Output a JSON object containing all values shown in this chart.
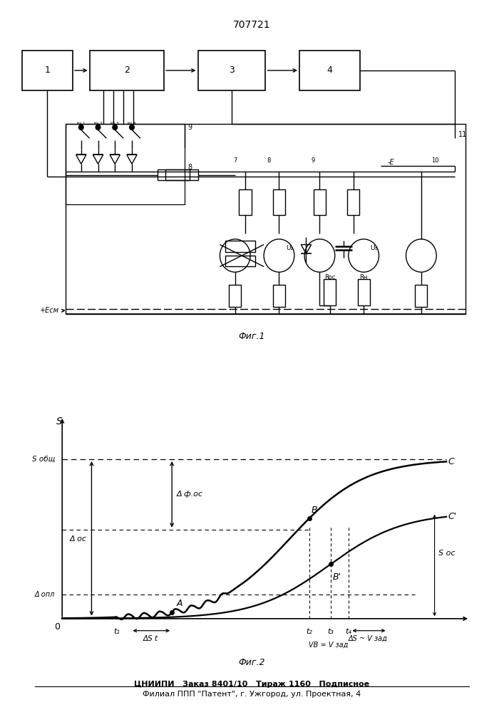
{
  "title": "707721",
  "fig1_label": "Фиг.1",
  "fig2_label": "Фиг.2",
  "footer_line1": "ЦНИИПИ   Заказ 8401/10   Тираж 1160   Подписное",
  "footer_line2": "Филиал ППП \"Патент\", г. Ужгород, ул. Проектная, 4",
  "bg_color": "#ffffff",
  "line_color": "#000000"
}
